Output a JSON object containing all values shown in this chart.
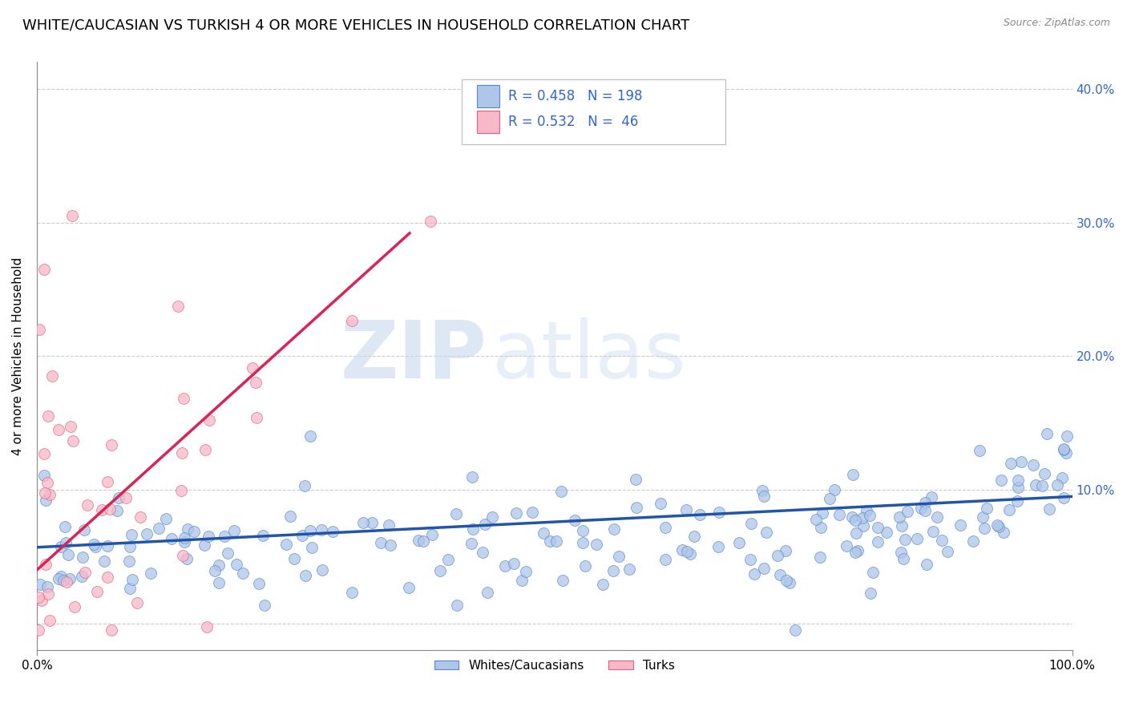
{
  "title": "WHITE/CAUCASIAN VS TURKISH 4 OR MORE VEHICLES IN HOUSEHOLD CORRELATION CHART",
  "source": "Source: ZipAtlas.com",
  "ylabel": "4 or more Vehicles in Household",
  "xlim": [
    0.0,
    1.0
  ],
  "ylim": [
    -0.02,
    0.42
  ],
  "yticks": [
    0.0,
    0.1,
    0.2,
    0.3,
    0.4
  ],
  "ytick_labels": [
    "",
    "10.0%",
    "20.0%",
    "30.0%",
    "40.0%"
  ],
  "xticks": [
    0.0,
    1.0
  ],
  "xtick_labels": [
    "0.0%",
    "100.0%"
  ],
  "blue_R": 0.458,
  "blue_N": 198,
  "pink_R": 0.532,
  "pink_N": 46,
  "blue_color": "#aec6e8",
  "blue_edge_color": "#5588cc",
  "blue_line_color": "#2255aa",
  "pink_color": "#f7b8c8",
  "pink_edge_color": "#e06080",
  "pink_line_color": "#dd2255",
  "legend_label_blue": "Whites/Caucasians",
  "legend_label_pink": "Turks",
  "watermark_zip": "ZIP",
  "watermark_atlas": "atlas",
  "background_color": "#ffffff",
  "grid_color": "#cccccc",
  "title_fontsize": 13,
  "axis_label_fontsize": 11,
  "tick_fontsize": 11,
  "legend_text_color": "#3366cc"
}
